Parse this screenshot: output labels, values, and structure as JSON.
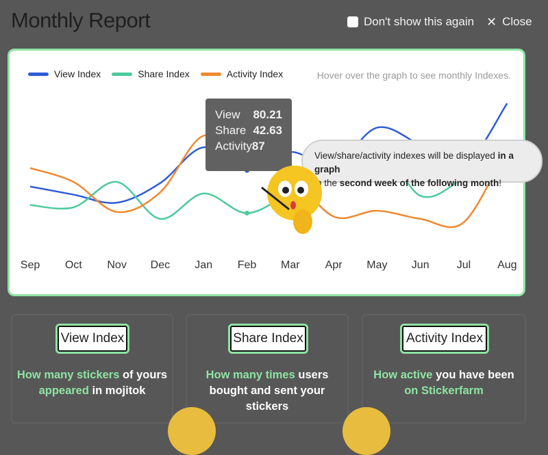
{
  "header": {
    "title": "Monthly Report",
    "dont_show_label": "Don't show this again",
    "close_label": "Close"
  },
  "legend": [
    {
      "name": "View Index",
      "color": "#2f5bd8"
    },
    {
      "name": "Share Index",
      "color": "#4ec99a"
    },
    {
      "name": "Activity Index",
      "color": "#f0882e"
    }
  ],
  "hover_hint": "Hover over the graph to see monthly Indexes.",
  "tooltip": {
    "rows": [
      {
        "label": "View",
        "value": "80.21"
      },
      {
        "label": "Share",
        "value": "42.63"
      },
      {
        "label": "Activity",
        "value": "87"
      }
    ]
  },
  "speech": {
    "part1": "View/share/activity indexes will be displayed ",
    "bold1": "in a graph",
    "part2": " in the ",
    "bold2": "second week of the following month",
    "part3": "!"
  },
  "chart_data": {
    "type": "line",
    "x": [
      "Sep",
      "Oct",
      "Nov",
      "Dec",
      "Jan",
      "Feb",
      "Mar",
      "Apr",
      "May",
      "Jun",
      "Jul",
      "Aug"
    ],
    "series": [
      {
        "name": "View Index",
        "color": "#2f5bd8",
        "values": [
          66,
          59,
          52,
          69,
          100,
          80,
          96,
          84,
          117,
          102,
          84,
          138
        ]
      },
      {
        "name": "Share Index",
        "color": "#4ec99a",
        "values": [
          50,
          48,
          70,
          38,
          60,
          43,
          61,
          82,
          105,
          58,
          74,
          106
        ]
      },
      {
        "name": "Activity Index",
        "color": "#f0882e",
        "values": [
          82,
          70,
          44,
          61,
          110,
          87,
          76,
          40,
          45,
          38,
          35,
          100
        ]
      }
    ],
    "ylim": [
      0,
      160
    ],
    "highlight_index": 5
  },
  "cards": [
    {
      "button": "View Index",
      "hl1": "How many stickers",
      "t1": " of yours",
      "hl2": "appeared",
      "t2": " in mojitok"
    },
    {
      "button": "Share Index",
      "hl1": "How many times",
      "t1": " users",
      "hl2": "",
      "t2": "bought and sent your stickers"
    },
    {
      "button": "Activity Index",
      "hl1": "How active",
      "t1": " you have been",
      "hl2": "on Stickerfarm",
      "t2": ""
    }
  ]
}
